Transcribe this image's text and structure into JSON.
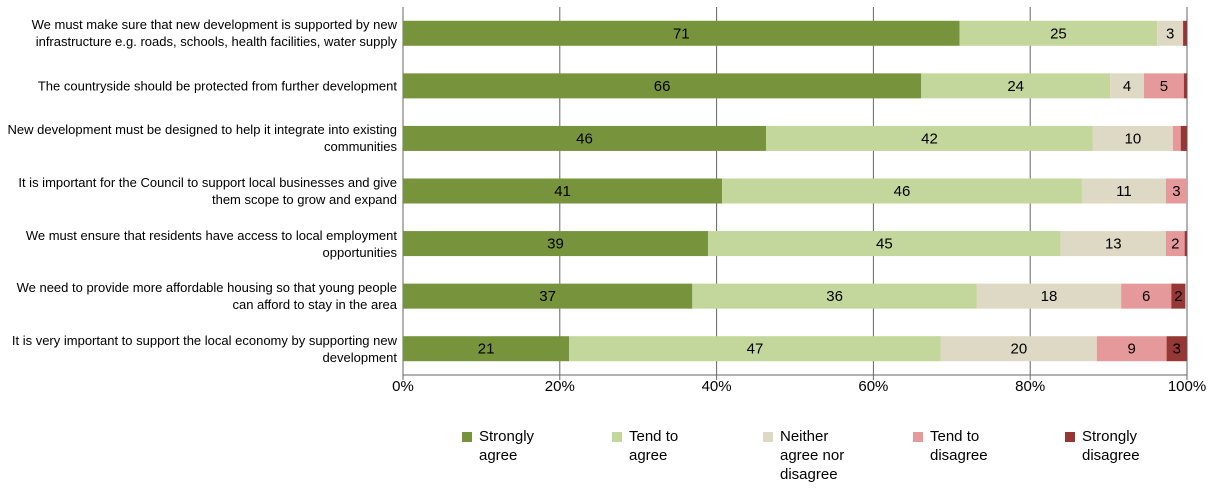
{
  "chart_data": {
    "type": "stacked-bar-horizontal",
    "categories": [
      "We must make sure that new development is supported by new infrastructure e.g. roads, schools, health facilities, water supply",
      "The countryside should be protected from further development",
      "New development must be designed to help it integrate into existing communities",
      "It is important for the Council to support local businesses and give them scope to grow and expand",
      "We must ensure that residents have access to local employment opportunities",
      "We need to provide more affordable housing so that young people can afford to stay in the area",
      "It is very important to support the local economy by supporting new development"
    ],
    "series": [
      {
        "name": "Strongly agree",
        "color": "#77933c",
        "values": [
          71.0,
          66.1,
          46.3,
          40.7,
          38.9,
          36.9,
          21.2
        ],
        "value_labels": [
          "71",
          "66",
          "46",
          "41",
          "39",
          "37",
          "21"
        ]
      },
      {
        "name": "Tend to agree",
        "color": "#c3d69b",
        "values": [
          25.2,
          24.1,
          41.7,
          45.9,
          45.0,
          36.3,
          47.4
        ],
        "value_labels": [
          "25",
          "24",
          "42",
          "46",
          "45",
          "36",
          "47"
        ]
      },
      {
        "name": "Neither agree nor disagree",
        "color": "#ddd9c4",
        "values": [
          3.3,
          4.3,
          10.2,
          10.7,
          13.4,
          18.4,
          19.9
        ],
        "value_labels": [
          "3",
          "4",
          "10",
          "11",
          "13",
          "18",
          "20"
        ]
      },
      {
        "name": "Tend to disagree",
        "color": "#e6999a",
        "values": [
          0,
          5.1,
          1.0,
          2.7,
          2.4,
          6.4,
          8.9
        ],
        "value_labels": [
          null,
          "5",
          null,
          "3",
          "2",
          "6",
          "9"
        ]
      },
      {
        "name": "Strongly disagree",
        "color": "#953735",
        "values": [
          0.5,
          0.4,
          0.8,
          0,
          0.3,
          1.8,
          2.6
        ],
        "value_labels": [
          null,
          null,
          null,
          null,
          null,
          "2",
          "3"
        ]
      }
    ],
    "xlim": [
      0,
      100
    ],
    "xticks": [
      {
        "value": 0,
        "label": "0%"
      },
      {
        "value": 20,
        "label": "20%"
      },
      {
        "value": 40,
        "label": "40%"
      },
      {
        "value": 60,
        "label": "60%"
      },
      {
        "value": 80,
        "label": "80%"
      },
      {
        "value": 100,
        "label": "100%"
      }
    ],
    "grid": true
  }
}
